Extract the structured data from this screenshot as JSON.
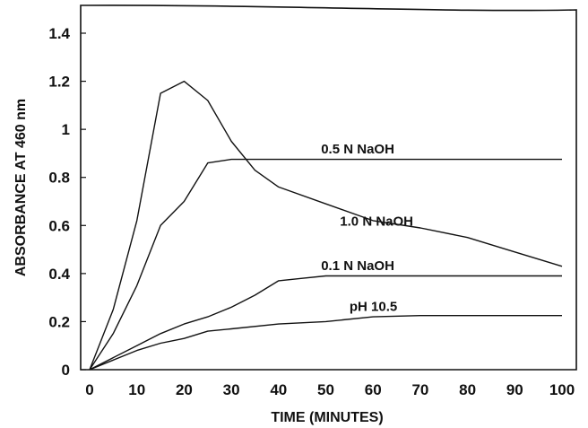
{
  "chart_data": {
    "type": "line",
    "xlabel": "TIME (MINUTES)",
    "ylabel": "ABSORBANCE AT 460 nm",
    "xlim": [
      0,
      100
    ],
    "ylim": [
      0,
      1.5
    ],
    "x_ticks": [
      "0",
      "10",
      "20",
      "30",
      "40",
      "50",
      "60",
      "70",
      "80",
      "90",
      "100"
    ],
    "y_ticks": [
      "0",
      "0.2",
      "0.4",
      "0.6",
      "0.8",
      "1",
      "1.2",
      "1.4"
    ],
    "grid": false,
    "series": [
      {
        "name": "0.5 N NaOH",
        "x": [
          0,
          3,
          5,
          10,
          15,
          20,
          25,
          30,
          35,
          40,
          50,
          60,
          70,
          80,
          90,
          100
        ],
        "y": [
          0,
          0.15,
          0.25,
          0.62,
          1.15,
          1.2,
          1.12,
          0.95,
          0.83,
          0.76,
          0.69,
          0.62,
          0.59,
          0.55,
          0.49,
          0.43
        ]
      },
      {
        "name": "1.0 N NaOH",
        "x": [
          0,
          5,
          10,
          15,
          20,
          25,
          30,
          40,
          50,
          60,
          70,
          80,
          90,
          100
        ],
        "y": [
          0,
          0.15,
          0.35,
          0.6,
          0.7,
          0.86,
          0.875,
          0.875,
          0.875,
          0.875,
          0.875,
          0.875,
          0.875,
          0.875
        ]
      },
      {
        "name": "0.1 N NaOH",
        "x": [
          0,
          5,
          10,
          15,
          20,
          25,
          30,
          35,
          40,
          45,
          50,
          60,
          70,
          80,
          90,
          100
        ],
        "y": [
          0,
          0.05,
          0.1,
          0.15,
          0.19,
          0.22,
          0.26,
          0.31,
          0.37,
          0.38,
          0.39,
          0.39,
          0.39,
          0.39,
          0.39,
          0.39
        ]
      },
      {
        "name": "pH 10.5",
        "x": [
          0,
          5,
          10,
          15,
          20,
          25,
          30,
          40,
          50,
          60,
          70,
          80,
          90,
          100
        ],
        "y": [
          0,
          0.04,
          0.08,
          0.11,
          0.13,
          0.16,
          0.17,
          0.19,
          0.2,
          0.22,
          0.225,
          0.225,
          0.225,
          0.225
        ]
      }
    ],
    "annotations": [
      {
        "text": "0.5 N NaOH",
        "x": 49,
        "y": 0.9
      },
      {
        "text": "1.0 N NaOH",
        "x": 53,
        "y": 0.6
      },
      {
        "text": "0.1 N NaOH",
        "x": 49,
        "y": 0.415
      },
      {
        "text": "pH 10.5",
        "x": 55,
        "y": 0.245
      }
    ]
  }
}
